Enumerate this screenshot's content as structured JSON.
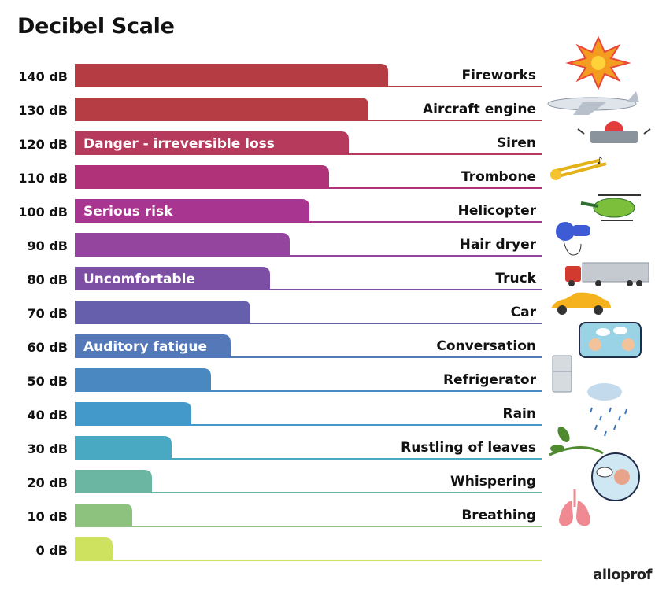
{
  "chart_data": {
    "type": "bar",
    "orientation": "horizontal",
    "title": "Decibel Scale",
    "unit": "dB",
    "categories": [
      "Fireworks",
      "Aircraft engine",
      "Siren",
      "Trombone",
      "Helicopter",
      "Hair dryer",
      "Truck",
      "Car",
      "Conversation",
      "Refrigerator",
      "Rain",
      "Rustling of leaves",
      "Whispering",
      "Breathing",
      ""
    ],
    "values": [
      140,
      130,
      120,
      110,
      100,
      90,
      80,
      70,
      60,
      50,
      40,
      30,
      20,
      10,
      0
    ],
    "tick_labels": [
      "140 dB",
      "130 dB",
      "120 dB",
      "110 dB",
      "100 dB",
      "90 dB",
      "80 dB",
      "70 dB",
      "60 dB",
      "50 dB",
      "40 dB",
      "30 dB",
      "20 dB",
      "10 dB",
      "0 dB"
    ],
    "colors": [
      "#b63c43",
      "#b73d45",
      "#b53a5c",
      "#b0337a",
      "#a8358f",
      "#94459e",
      "#7c4ea4",
      "#6660ac",
      "#5578b8",
      "#4a88c1",
      "#4399c9",
      "#49a9c3",
      "#6ab6a2",
      "#8cc17e",
      "#cfe25f"
    ],
    "zone_labels": [
      {
        "level": 120,
        "text": "Danger - irreversible loss"
      },
      {
        "level": 100,
        "text": "Serious risk"
      },
      {
        "level": 80,
        "text": "Uncomfortable"
      },
      {
        "level": 60,
        "text": "Auditory fatigue"
      }
    ]
  },
  "brand": "alloprof",
  "icons": [
    "fireworks-icon",
    "airplane-icon",
    "siren-icon",
    "trombone-icon",
    "helicopter-icon",
    "hair-dryer-icon",
    "truck-icon",
    "car-icon",
    "conversation-icon",
    "refrigerator-icon",
    "rain-icon",
    "leaves-icon",
    "whispering-icon",
    "lungs-icon"
  ]
}
